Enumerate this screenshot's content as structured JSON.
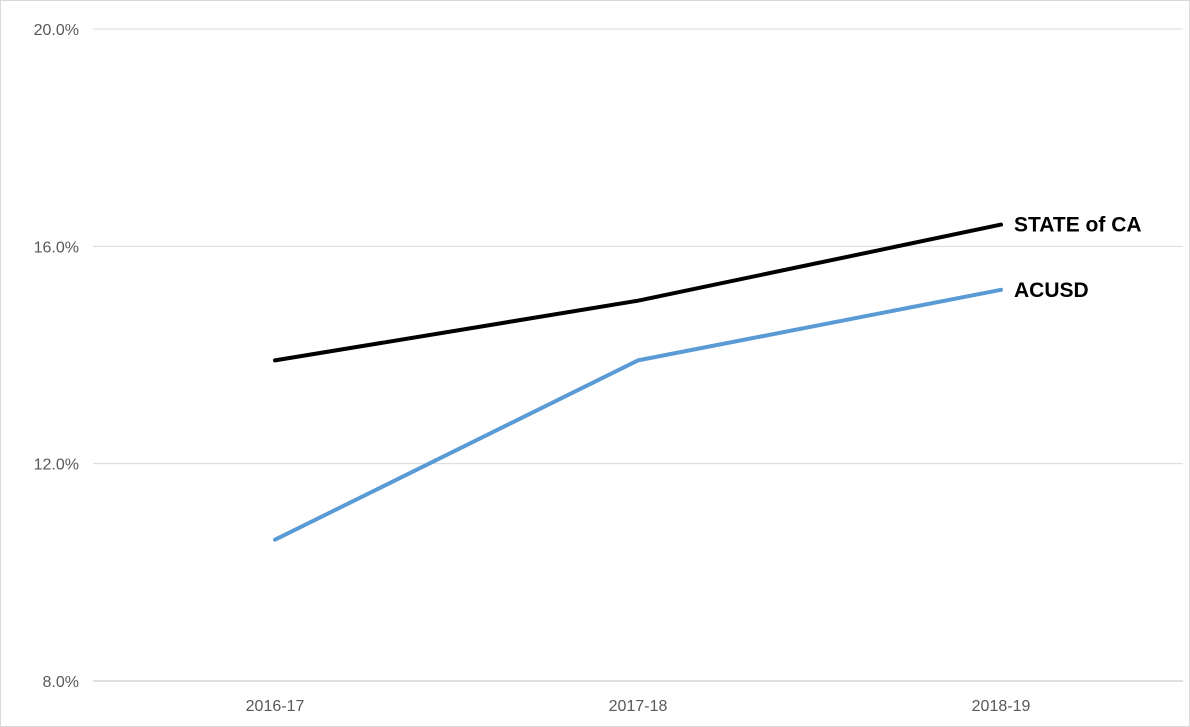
{
  "chart_data": {
    "type": "line",
    "title": "",
    "xlabel": "",
    "ylabel": "",
    "categories": [
      "2016-17",
      "2017-18",
      "2018-19"
    ],
    "y_ticks": [
      8.0,
      12.0,
      16.0,
      20.0
    ],
    "y_tick_labels": [
      "8.0%",
      "12.0%",
      "16.0%",
      "20.0%"
    ],
    "ylim": [
      8.0,
      20.0
    ],
    "grid": true,
    "legend": "inline labels at line ends (right)",
    "series": [
      {
        "name": "STATE of CA",
        "values": [
          13.9,
          15.0,
          16.4
        ],
        "color": "#000000"
      },
      {
        "name": "ACUSD",
        "values": [
          10.6,
          13.9,
          15.2
        ],
        "color": "#5b9bd5"
      }
    ]
  }
}
